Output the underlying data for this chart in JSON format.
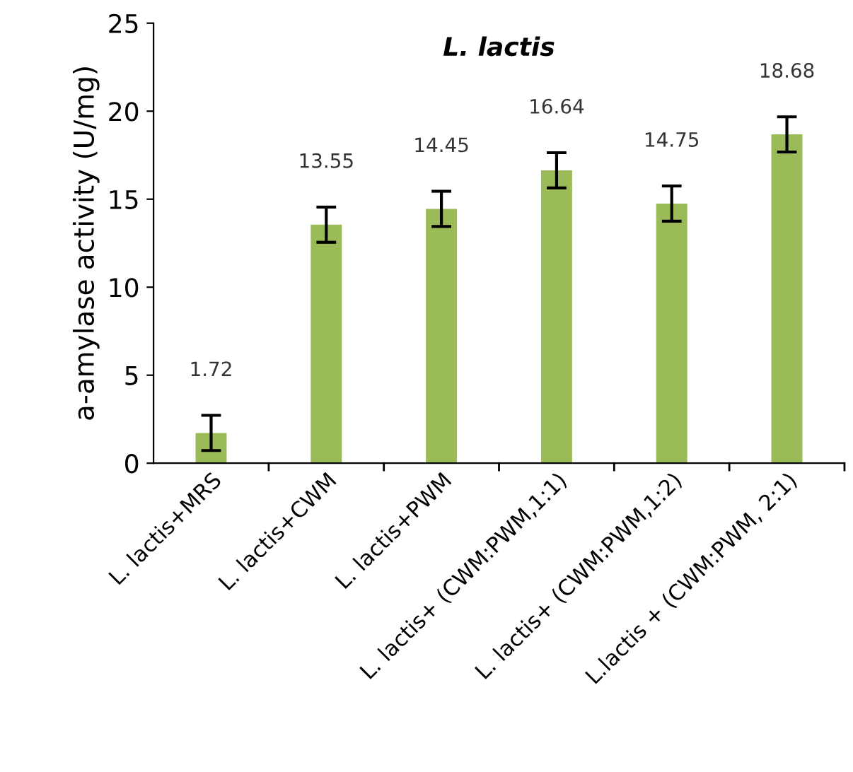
{
  "chart_data": {
    "type": "bar",
    "title": "L. lactis",
    "ylabel": "a-amylase activity (U/mg)",
    "categories": [
      "L. lactis+MRS",
      "L. lactis+CWM",
      "L. lactis+PWM",
      "L. lactis+ (CWM:PWM,1:1)",
      "L. lactis+ (CWM:PWM,1:2)",
      "L.lactis + (CWM:PWM, 2:1)"
    ],
    "values": [
      1.72,
      13.55,
      14.45,
      16.64,
      14.75,
      18.68
    ],
    "errors": [
      1.0,
      1.0,
      1.0,
      1.0,
      1.0,
      1.0
    ],
    "color": "#9bbb59",
    "ylim": [
      0,
      25
    ],
    "yticks": [
      0,
      5,
      10,
      15,
      20,
      25
    ],
    "grid": false,
    "legend": false,
    "data_labels": true
  }
}
